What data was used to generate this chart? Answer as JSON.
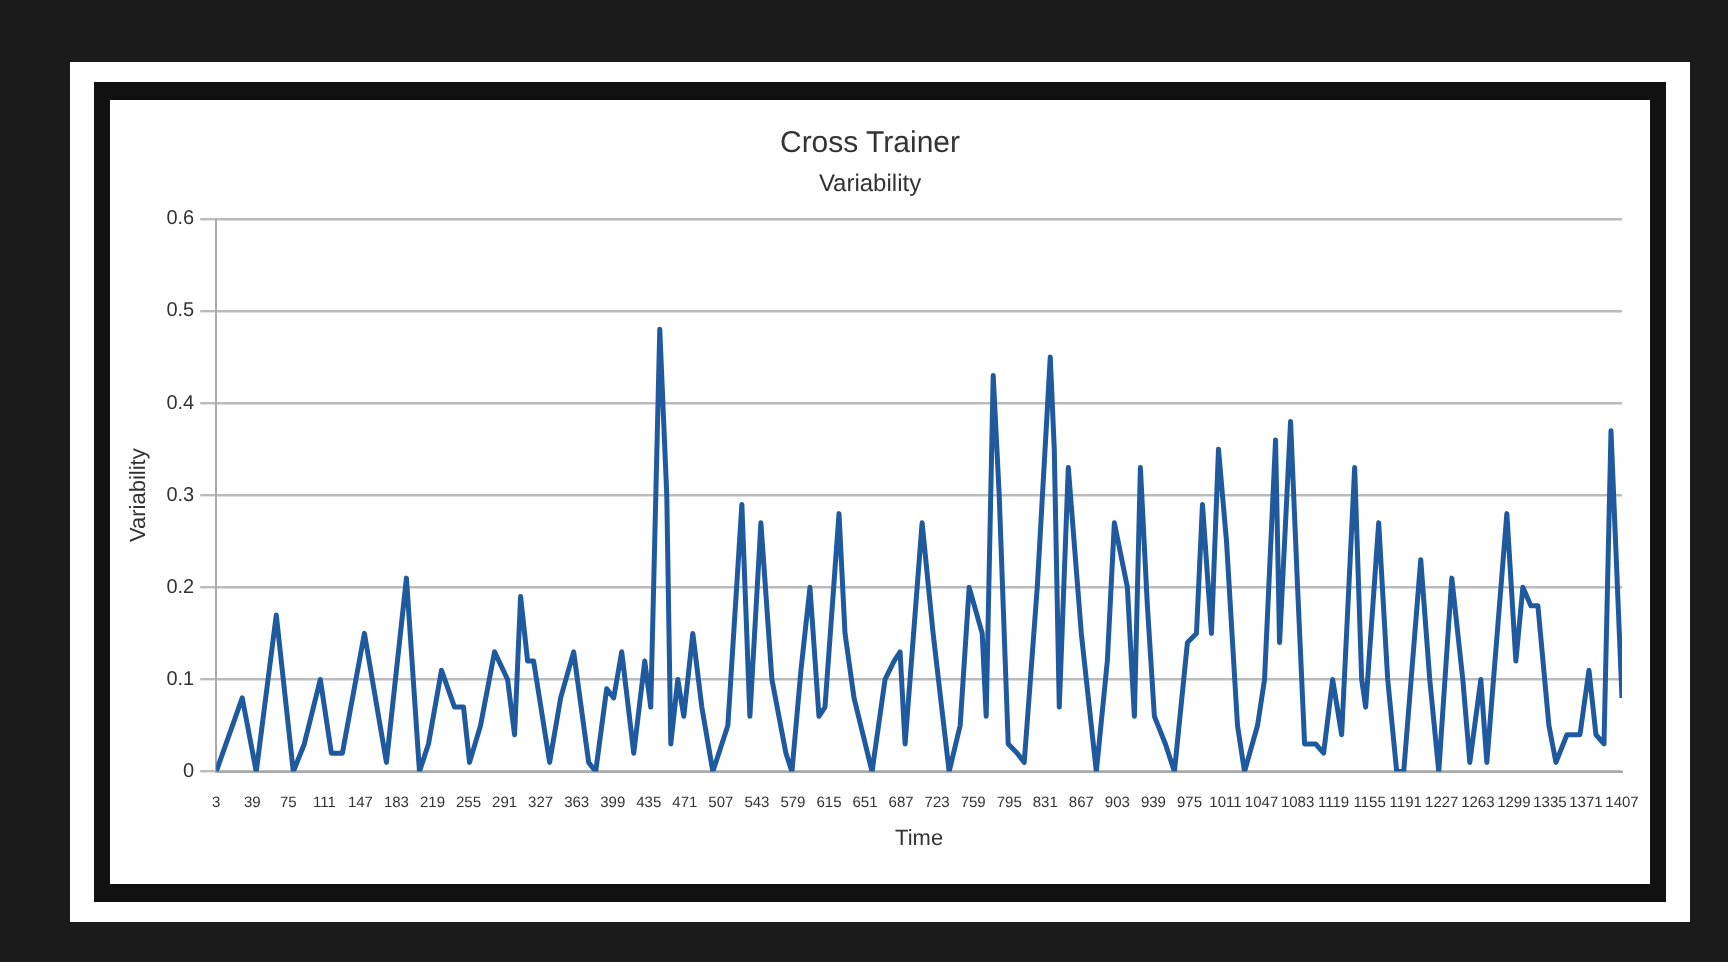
{
  "chart_data": {
    "type": "line",
    "title": "Cross Trainer",
    "subtitle": "Variability",
    "xlabel": "Time",
    "ylabel": "Variability",
    "x": [
      3,
      29,
      43,
      63,
      80,
      91,
      107,
      118,
      129,
      151,
      173,
      193,
      206,
      215,
      228,
      241,
      250,
      256,
      267,
      281,
      294,
      301,
      307,
      314,
      320,
      336,
      347,
      360,
      375,
      382,
      393,
      400,
      408,
      420,
      431,
      437,
      446,
      453,
      457,
      464,
      470,
      479,
      488,
      499,
      514,
      528,
      536,
      547,
      558,
      572,
      578,
      587,
      596,
      605,
      611,
      625,
      631,
      640,
      658,
      671,
      680,
      686,
      691,
      708,
      719,
      735,
      746,
      755,
      768,
      772,
      779,
      785,
      794,
      803,
      810,
      823,
      836,
      840,
      845,
      854,
      867,
      882,
      893,
      900,
      913,
      920,
      926,
      933,
      940,
      951,
      960,
      973,
      982,
      988,
      997,
      1004,
      1012,
      1023,
      1030,
      1043,
      1050,
      1061,
      1065,
      1076,
      1083,
      1090,
      1101,
      1109,
      1118,
      1127,
      1140,
      1147,
      1151,
      1164,
      1173,
      1182,
      1189,
      1206,
      1215,
      1224,
      1237,
      1248,
      1255,
      1266,
      1272,
      1292,
      1301,
      1308,
      1316,
      1323,
      1334,
      1341,
      1352,
      1365,
      1374,
      1381,
      1389,
      1396,
      1407
    ],
    "series": [
      {
        "color": "#1f5a9e",
        "values": [
          0,
          0.08,
          0,
          0.17,
          0,
          0.03,
          0.1,
          0.02,
          0.02,
          0.15,
          0.01,
          0.21,
          0,
          0.03,
          0.11,
          0.07,
          0.07,
          0.01,
          0.05,
          0.13,
          0.1,
          0.04,
          0.19,
          0.12,
          0.12,
          0.01,
          0.08,
          0.13,
          0.01,
          0,
          0.09,
          0.08,
          0.13,
          0.02,
          0.12,
          0.07,
          0.48,
          0.3,
          0.03,
          0.1,
          0.06,
          0.15,
          0.07,
          0,
          0.05,
          0.29,
          0.06,
          0.27,
          0.1,
          0.02,
          0,
          0.11,
          0.2,
          0.06,
          0.07,
          0.28,
          0.15,
          0.08,
          0,
          0.1,
          0.12,
          0.13,
          0.03,
          0.27,
          0.15,
          0,
          0.05,
          0.2,
          0.15,
          0.06,
          0.43,
          0.3,
          0.03,
          0.02,
          0.01,
          0.2,
          0.45,
          0.35,
          0.07,
          0.33,
          0.15,
          0,
          0.12,
          0.27,
          0.2,
          0.06,
          0.33,
          0.18,
          0.06,
          0.03,
          0,
          0.14,
          0.15,
          0.29,
          0.15,
          0.35,
          0.25,
          0.05,
          0,
          0.05,
          0.1,
          0.36,
          0.14,
          0.38,
          0.2,
          0.03,
          0.03,
          0.02,
          0.1,
          0.04,
          0.33,
          0.1,
          0.07,
          0.27,
          0.1,
          0,
          0,
          0.23,
          0.1,
          0,
          0.21,
          0.1,
          0.01,
          0.1,
          0.01,
          0.28,
          0.12,
          0.2,
          0.18,
          0.18,
          0.05,
          0.01,
          0.04,
          0.04,
          0.11,
          0.04,
          0.03,
          0.37,
          0.08
        ]
      }
    ],
    "xlim": [
      3,
      1407
    ],
    "xticks": [
      3,
      39,
      75,
      111,
      147,
      183,
      219,
      255,
      291,
      327,
      363,
      399,
      435,
      471,
      507,
      543,
      579,
      615,
      651,
      687,
      723,
      759,
      795,
      831,
      867,
      903,
      939,
      975,
      1011,
      1047,
      1083,
      1119,
      1155,
      1191,
      1227,
      1263,
      1299,
      1335,
      1371,
      1407
    ],
    "ylim": [
      0,
      0.6
    ],
    "yticks": [
      0,
      0.1,
      0.2,
      0.3,
      0.4,
      0.5,
      0.6
    ],
    "grid": "y",
    "legend": false,
    "marker": "none",
    "line_style": "solid"
  }
}
